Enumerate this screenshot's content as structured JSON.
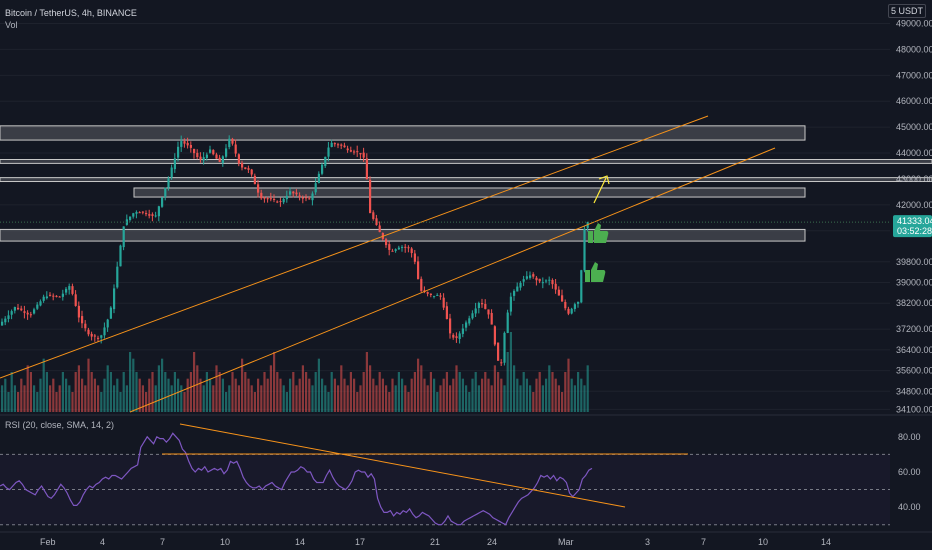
{
  "header": {
    "symbol_title": "Bitcoin / TetherUS, 4h, BINANCE",
    "volume_label": "Vol",
    "currency": "USDT",
    "currency_prefix": "5"
  },
  "rsi_panel": {
    "title": "RSI (20, close, SMA, 14, 2)"
  },
  "price_marker": {
    "price": "41333.04",
    "countdown": "03:52:28"
  },
  "colors": {
    "background": "#131722",
    "up": "#26a69a",
    "down": "#ef5350",
    "trendline": "#f7931a",
    "rsi_line": "#7e57c2",
    "thumb": "#4caf50",
    "arrow": "#ffeb3b"
  },
  "icons": [
    "thumbs-up-icon",
    "thumbs-up-icon",
    "arrow-up-right-icon"
  ],
  "chart_data": [
    {
      "type": "candlestick",
      "price_axis_labels": [
        "49000.00",
        "48000.00",
        "47000.00",
        "46000.00",
        "45000.00",
        "44000.00",
        "43000.00",
        "42000.00",
        "41000.00",
        "39800.00",
        "39000.00",
        "38200.00",
        "37200.00",
        "36400.00",
        "35600.00",
        "34800.00",
        "34100.00"
      ],
      "time_axis_labels": [
        "Feb",
        "4",
        "7",
        "10",
        "14",
        "17",
        "21",
        "24",
        "Mar",
        "3",
        "7",
        "10",
        "14"
      ],
      "ylim": [
        34000,
        49600
      ],
      "last_price": 41333.04,
      "path_points": [
        [
          0,
          37400
        ],
        [
          15,
          38050
        ],
        [
          30,
          37750
        ],
        [
          45,
          38500
        ],
        [
          60,
          38450
        ],
        [
          70,
          38900
        ],
        [
          80,
          37500
        ],
        [
          90,
          36950
        ],
        [
          100,
          36850
        ],
        [
          110,
          37800
        ],
        [
          118,
          39800
        ],
        [
          124,
          41300
        ],
        [
          135,
          41750
        ],
        [
          145,
          41700
        ],
        [
          155,
          41500
        ],
        [
          160,
          42100
        ],
        [
          170,
          43200
        ],
        [
          180,
          44500
        ],
        [
          190,
          44200
        ],
        [
          200,
          43700
        ],
        [
          210,
          44100
        ],
        [
          220,
          43600
        ],
        [
          230,
          44600
        ],
        [
          240,
          43500
        ],
        [
          250,
          43300
        ],
        [
          260,
          42300
        ],
        [
          270,
          42200
        ],
        [
          280,
          42100
        ],
        [
          290,
          42500
        ],
        [
          300,
          42300
        ],
        [
          310,
          42200
        ],
        [
          320,
          43300
        ],
        [
          330,
          44400
        ],
        [
          340,
          44300
        ],
        [
          350,
          44100
        ],
        [
          360,
          44000
        ],
        [
          365,
          43700
        ],
        [
          370,
          41700
        ],
        [
          380,
          40900
        ],
        [
          390,
          40200
        ],
        [
          400,
          40400
        ],
        [
          410,
          40300
        ],
        [
          415,
          39800
        ],
        [
          420,
          38700
        ],
        [
          430,
          38500
        ],
        [
          440,
          38500
        ],
        [
          445,
          37900
        ],
        [
          450,
          37000
        ],
        [
          456,
          36800
        ],
        [
          462,
          37200
        ],
        [
          470,
          37700
        ],
        [
          480,
          38300
        ],
        [
          490,
          37700
        ],
        [
          495,
          36600
        ],
        [
          500,
          35500
        ],
        [
          505,
          37300
        ],
        [
          510,
          38400
        ],
        [
          520,
          39000
        ],
        [
          530,
          39300
        ],
        [
          540,
          39000
        ],
        [
          550,
          39100
        ],
        [
          560,
          38400
        ],
        [
          568,
          37800
        ],
        [
          575,
          38200
        ],
        [
          580,
          38300
        ],
        [
          582,
          40300
        ],
        [
          585,
          41300
        ],
        [
          588,
          41333
        ]
      ],
      "volume": [
        4,
        5,
        3,
        6,
        4,
        3,
        5,
        4,
        7,
        6,
        4,
        3,
        5,
        8,
        6,
        4,
        5,
        3,
        4,
        6,
        5,
        4,
        3,
        6,
        7,
        5,
        4,
        8,
        6,
        5,
        4,
        3,
        5,
        7,
        6,
        4,
        5,
        3,
        6,
        4,
        9,
        8,
        6,
        5,
        4,
        3,
        5,
        6,
        4,
        7,
        8,
        6,
        5,
        4,
        6,
        5,
        4,
        3,
        5,
        6,
        9,
        7,
        5,
        4,
        6,
        5,
        4,
        7,
        6,
        5,
        3,
        4,
        6,
        5,
        4,
        8,
        6,
        5,
        4,
        3,
        5,
        4,
        6,
        5,
        7,
        9,
        6,
        5,
        4,
        3,
        5,
        6,
        4,
        5,
        7,
        6,
        5,
        4,
        6,
        8,
        5,
        4,
        3,
        6,
        5,
        4,
        7,
        5,
        4,
        6,
        5,
        3,
        4,
        6,
        9,
        7,
        5,
        4,
        6,
        5,
        4,
        3,
        5,
        4,
        6,
        5,
        4,
        3,
        5,
        6,
        8,
        7,
        5,
        4,
        6,
        5,
        3,
        4,
        5,
        6,
        4,
        5,
        7,
        6,
        5,
        4,
        3,
        5,
        6,
        4,
        5,
        6,
        5,
        4,
        7,
        6,
        5,
        4,
        9,
        12,
        7,
        5,
        4,
        6,
        5,
        4,
        3,
        5,
        6,
        4,
        5,
        7,
        6,
        5,
        4,
        3,
        6,
        8,
        5,
        4,
        6,
        5,
        4,
        7,
        10,
        6
      ],
      "zones": [
        {
          "from": 44500,
          "to": 45050
        },
        {
          "from": 43600,
          "to": 43750
        },
        {
          "from": 42900,
          "to": 43050
        },
        {
          "from": 42300,
          "to": 42650
        },
        {
          "from": 40600,
          "to": 41050
        }
      ]
    },
    {
      "type": "line",
      "name": "RSI (20, close, SMA, 14, 2)",
      "ylabels": [
        "80.00",
        "60.00",
        "40.00"
      ],
      "ylim": [
        27,
        85
      ],
      "levels": [
        70,
        50,
        30
      ],
      "values": [
        52,
        53,
        51,
        50,
        52,
        54,
        55,
        53,
        50,
        49,
        48,
        47,
        50,
        52,
        49,
        46,
        45,
        47,
        50,
        53,
        51,
        48,
        44,
        41,
        41,
        43,
        47,
        50,
        52,
        51,
        53,
        54,
        56,
        57,
        56,
        58,
        58,
        57,
        56,
        58,
        60,
        62,
        63,
        64,
        74,
        77,
        80,
        78,
        76,
        80,
        79,
        79,
        77,
        79,
        82,
        80,
        78,
        73,
        71,
        66,
        62,
        60,
        62,
        61,
        63,
        60,
        61,
        62,
        61,
        62,
        59,
        61,
        66,
        65,
        66,
        62,
        57,
        54,
        52,
        51,
        51,
        52,
        50,
        52,
        53,
        54,
        52,
        51,
        50,
        54,
        57,
        60,
        60,
        61,
        63,
        62,
        60,
        60,
        56,
        54,
        54,
        54,
        58,
        61,
        57,
        54,
        52,
        51,
        50,
        52,
        55,
        60,
        61,
        60,
        60,
        57,
        59,
        56,
        45,
        40,
        37,
        37,
        38,
        35,
        37,
        36,
        38,
        37,
        39,
        36,
        34,
        35,
        37,
        36,
        35,
        33,
        31,
        30,
        30,
        32,
        35,
        32,
        31,
        30,
        30,
        32,
        33,
        34,
        35,
        36,
        37,
        38,
        37,
        36,
        34,
        33,
        32,
        31,
        30,
        34,
        37,
        40,
        43,
        45,
        46,
        47,
        49,
        51,
        54,
        58,
        57,
        58,
        56,
        58,
        55,
        57,
        56,
        54,
        48,
        46,
        48,
        50,
        56,
        58,
        61,
        62
      ]
    }
  ]
}
